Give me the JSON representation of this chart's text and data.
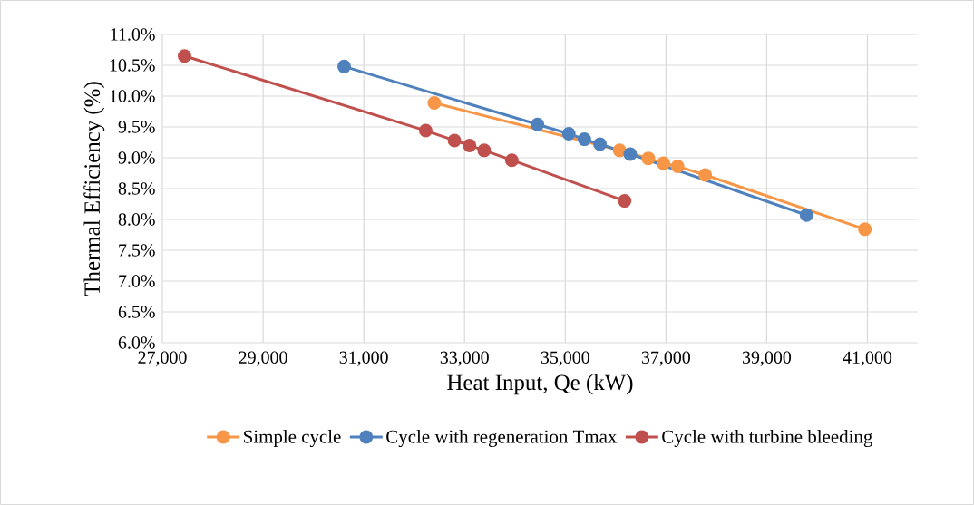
{
  "chart_data": {
    "type": "line",
    "xlabel": "Heat Input, Qe (kW)",
    "ylabel": "Thermal Efficiency (%)",
    "xlim": [
      27000,
      42000
    ],
    "ylim": [
      6,
      11
    ],
    "xticks": [
      {
        "value": 27000,
        "label": "27,000"
      },
      {
        "value": 29000,
        "label": "29,000"
      },
      {
        "value": 31000,
        "label": "31,000"
      },
      {
        "value": 33000,
        "label": "33,000"
      },
      {
        "value": 35000,
        "label": "35,000"
      },
      {
        "value": 37000,
        "label": "37,000"
      },
      {
        "value": 39000,
        "label": "39,000"
      },
      {
        "value": 41000,
        "label": "41,000"
      }
    ],
    "yticks": [
      {
        "value": 6,
        "label": "6.0%"
      },
      {
        "value": 6.5,
        "label": "6.5%"
      },
      {
        "value": 7,
        "label": "7.0%"
      },
      {
        "value": 7.5,
        "label": "7.5%"
      },
      {
        "value": 8,
        "label": "8.0%"
      },
      {
        "value": 8.5,
        "label": "8.5%"
      },
      {
        "value": 9,
        "label": "9.0%"
      },
      {
        "value": 9.5,
        "label": "9.5%"
      },
      {
        "value": 10,
        "label": "10.0%"
      },
      {
        "value": 10.5,
        "label": "10.5%"
      },
      {
        "value": 11,
        "label": "11.0%"
      }
    ],
    "grid": true,
    "legend": "bottom",
    "marker": "circle",
    "line_style": "solid",
    "series": [
      {
        "name": "Simple cycle",
        "color": "#f79646",
        "x": [
          32400,
          36080,
          36650,
          36950,
          37230,
          37780,
          40950
        ],
        "values": [
          9.89,
          9.12,
          8.99,
          8.91,
          8.86,
          8.72,
          7.84
        ]
      },
      {
        "name": "Cycle with regeneration Tmax",
        "color": "#4f81bd",
        "x": [
          30610,
          34450,
          35070,
          35380,
          35690,
          36290,
          39790
        ],
        "values": [
          10.48,
          9.54,
          9.39,
          9.3,
          9.22,
          9.06,
          8.07
        ]
      },
      {
        "name": "Cycle with turbine bleeding",
        "color": "#c0504d",
        "x": [
          27440,
          32230,
          32800,
          33100,
          33390,
          33940,
          36180
        ],
        "values": [
          10.65,
          9.44,
          9.28,
          9.2,
          9.12,
          8.96,
          8.3
        ]
      }
    ]
  }
}
